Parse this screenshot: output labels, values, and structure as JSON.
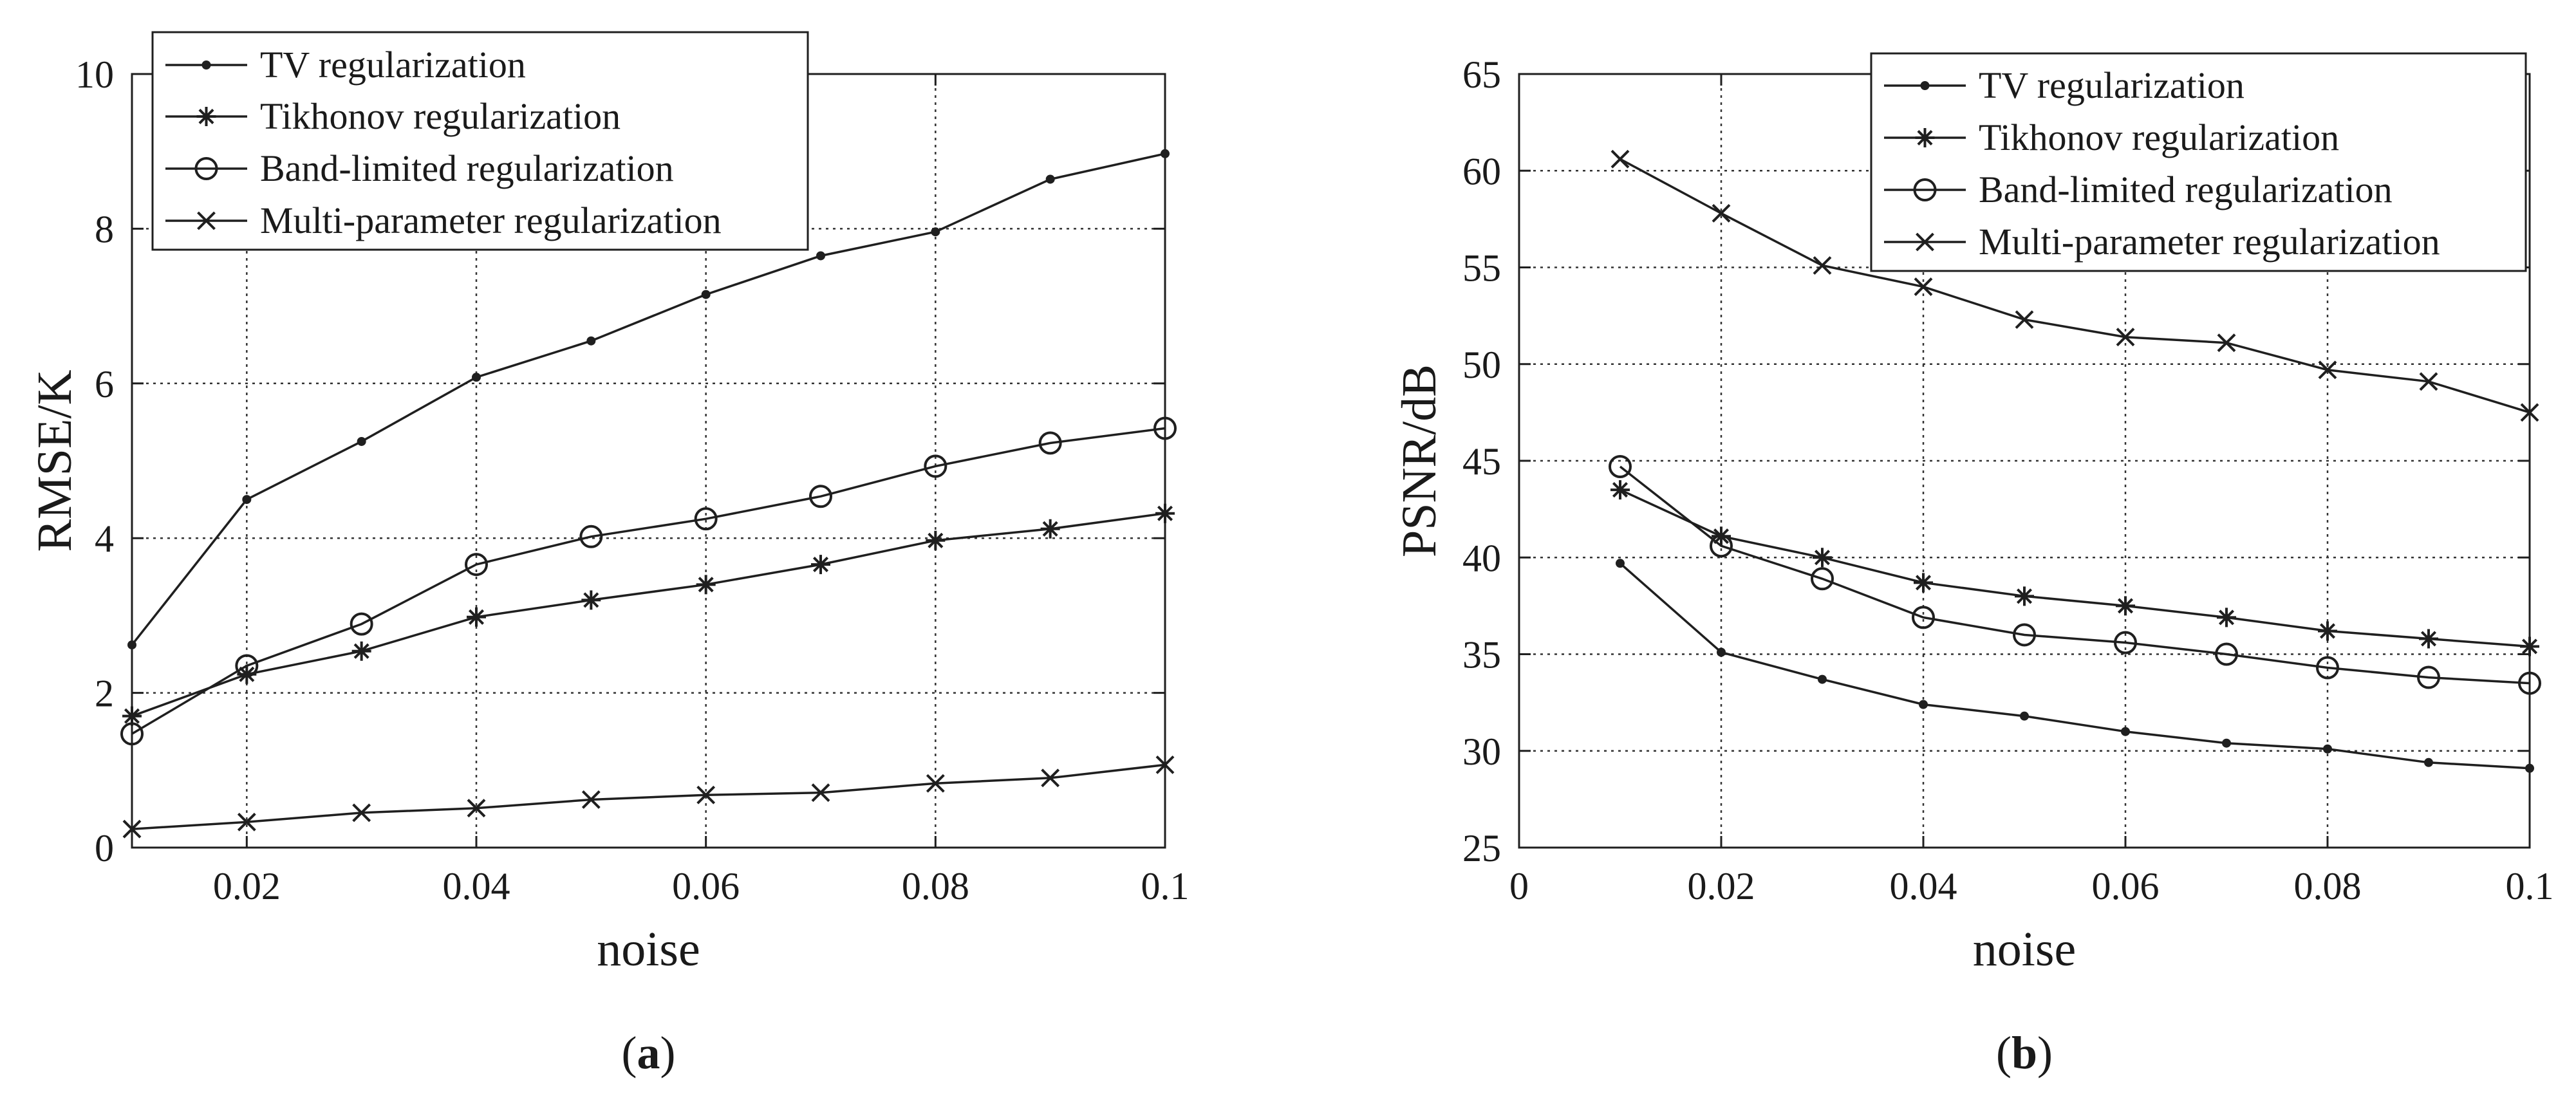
{
  "chart_data": [
    {
      "type": "line",
      "panel_label": "a",
      "title": "",
      "xlabel": "noise",
      "ylabel": "RMSE/K",
      "xlim": [
        0.01,
        0.1
      ],
      "ylim": [
        0,
        10
      ],
      "xticks": [
        0.02,
        0.04,
        0.06,
        0.08,
        0.1
      ],
      "xtick_labels": [
        "0.02",
        "0.04",
        "0.06",
        "0.08",
        "0.1"
      ],
      "yticks": [
        0,
        2,
        4,
        6,
        8,
        10
      ],
      "ytick_labels": [
        "0",
        "2",
        "4",
        "6",
        "8",
        "10"
      ],
      "grid": true,
      "legend_position": "top-left",
      "x": [
        0.01,
        0.02,
        0.03,
        0.04,
        0.05,
        0.06,
        0.07,
        0.08,
        0.09,
        0.1
      ],
      "series": [
        {
          "name": "TV regularization",
          "marker": "dot",
          "values": [
            2.62,
            4.5,
            5.25,
            6.08,
            6.55,
            7.15,
            7.65,
            7.96,
            8.64,
            8.97
          ]
        },
        {
          "name": "Tikhonov regularization",
          "marker": "asterisk",
          "values": [
            1.7,
            2.24,
            2.54,
            2.98,
            3.2,
            3.4,
            3.66,
            3.97,
            4.12,
            4.32
          ]
        },
        {
          "name": "Band-limited regularization",
          "marker": "circle",
          "values": [
            1.47,
            2.35,
            2.89,
            3.66,
            4.02,
            4.25,
            4.54,
            4.93,
            5.23,
            5.42
          ]
        },
        {
          "name": "Multi-parameter regularization",
          "marker": "cross",
          "values": [
            0.24,
            0.33,
            0.45,
            0.51,
            0.62,
            0.68,
            0.71,
            0.83,
            0.9,
            1.07
          ]
        }
      ]
    },
    {
      "type": "line",
      "panel_label": "b",
      "title": "",
      "xlabel": "noise",
      "ylabel": "PSNR/dB",
      "xlim": [
        0,
        0.1
      ],
      "ylim": [
        25,
        65
      ],
      "xticks": [
        0,
        0.02,
        0.04,
        0.06,
        0.08,
        0.1
      ],
      "xtick_labels": [
        "0",
        "0.02",
        "0.04",
        "0.06",
        "0.08",
        "0.1"
      ],
      "yticks": [
        25,
        30,
        35,
        40,
        45,
        50,
        55,
        60,
        65
      ],
      "ytick_labels": [
        "25",
        "30",
        "35",
        "40",
        "45",
        "50",
        "55",
        "60",
        "65"
      ],
      "grid": true,
      "legend_position": "top-right",
      "x": [
        0.01,
        0.02,
        0.03,
        0.04,
        0.05,
        0.06,
        0.07,
        0.08,
        0.09,
        0.1
      ],
      "series": [
        {
          "name": "TV regularization",
          "marker": "dot",
          "values": [
            39.7,
            35.1,
            33.7,
            32.4,
            31.8,
            31.0,
            30.4,
            30.1,
            29.4,
            29.1
          ]
        },
        {
          "name": "Tikhonov regularization",
          "marker": "asterisk",
          "values": [
            43.5,
            41.1,
            40.0,
            38.7,
            38.0,
            37.5,
            36.9,
            36.2,
            35.8,
            35.4
          ]
        },
        {
          "name": "Band-limited regularization",
          "marker": "circle",
          "values": [
            44.7,
            40.6,
            38.9,
            36.9,
            36.0,
            35.6,
            35.0,
            34.3,
            33.8,
            33.5
          ]
        },
        {
          "name": "Multi-parameter regularization",
          "marker": "cross",
          "values": [
            60.6,
            57.8,
            55.1,
            54.0,
            52.3,
            51.4,
            51.1,
            49.7,
            49.1,
            47.5
          ]
        }
      ]
    }
  ]
}
